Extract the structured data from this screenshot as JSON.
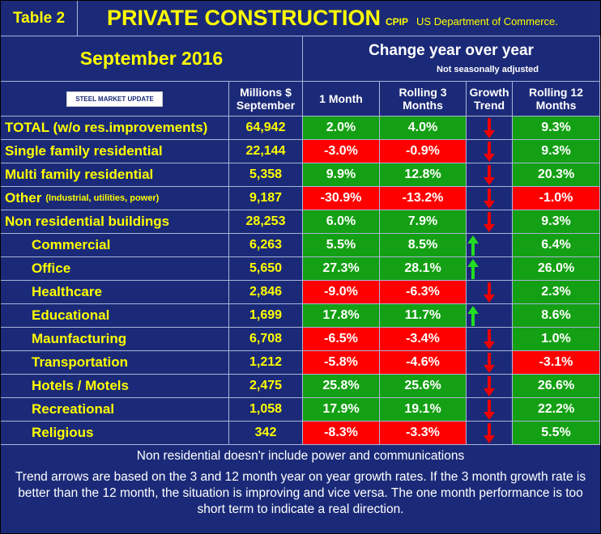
{
  "header": {
    "table_label": "Table 2",
    "title": "PRIVATE CONSTRUCTION",
    "code": "CPIP",
    "source": "US Department of Commerce.",
    "period": "September 2016",
    "change_title": "Change year over year",
    "change_note": "Not seasonally adjusted",
    "logo": "STEEL MARKET UPDATE"
  },
  "columns": [
    "Millions $ September",
    "1 Month",
    "Rolling 3 Months",
    "Growth Trend",
    "Rolling 12 Months"
  ],
  "rows": [
    {
      "label": "TOTAL (w/o res.improvements)",
      "value": "64,942",
      "m1": "2.0%",
      "m3": "4.0%",
      "trend": "down",
      "m12": "9.3%"
    },
    {
      "label": "Single family residential",
      "value": "22,144",
      "m1": "-3.0%",
      "m3": "-0.9%",
      "trend": "down",
      "m12": "9.3%"
    },
    {
      "label": "Multi family residential",
      "value": "5,358",
      "m1": "9.9%",
      "m3": "12.8%",
      "trend": "down",
      "m12": "20.3%"
    },
    {
      "label": "Other",
      "note": "(Industrial, utilities, power)",
      "value": "9,187",
      "m1": "-30.9%",
      "m3": "-13.2%",
      "trend": "down",
      "m12": "-1.0%"
    },
    {
      "label": "Non residential buildings",
      "value": "28,253",
      "m1": "6.0%",
      "m3": "7.9%",
      "trend": "down",
      "m12": "9.3%"
    },
    {
      "label": "Commercial",
      "indent": true,
      "value": "6,263",
      "m1": "5.5%",
      "m3": "8.5%",
      "trend": "up",
      "m12": "6.4%"
    },
    {
      "label": "Office",
      "indent": true,
      "value": "5,650",
      "m1": "27.3%",
      "m3": "28.1%",
      "trend": "up",
      "m12": "26.0%"
    },
    {
      "label": "Healthcare",
      "indent": true,
      "value": "2,846",
      "m1": "-9.0%",
      "m3": "-6.3%",
      "trend": "down",
      "m12": "2.3%"
    },
    {
      "label": "Educational",
      "indent": true,
      "value": "1,699",
      "m1": "17.8%",
      "m3": "11.7%",
      "trend": "up",
      "m12": "8.6%"
    },
    {
      "label": "Maunfacturing",
      "indent": true,
      "value": "6,708",
      "m1": "-6.5%",
      "m3": "-3.4%",
      "trend": "down",
      "m12": "1.0%"
    },
    {
      "label": "Transportation",
      "indent": true,
      "value": "1,212",
      "m1": "-5.8%",
      "m3": "-4.6%",
      "trend": "down",
      "m12": "-3.1%"
    },
    {
      "label": "Hotels / Motels",
      "indent": true,
      "value": "2,475",
      "m1": "25.8%",
      "m3": "25.6%",
      "trend": "down",
      "m12": "26.6%"
    },
    {
      "label": "Recreational",
      "indent": true,
      "value": "1,058",
      "m1": "17.9%",
      "m3": "19.1%",
      "trend": "down",
      "m12": "22.2%"
    },
    {
      "label": "Religious",
      "indent": true,
      "value": "342",
      "m1": "-8.3%",
      "m3": "-3.3%",
      "trend": "down",
      "m12": "5.5%"
    }
  ],
  "footer": {
    "note": "Non residential doesn'r include power and communications",
    "explanation": "Trend arrows are based on the 3 and 12 month year on year growth rates. If the 3 month growth rate is better than the 12 month, the situation is improving and vice versa. The one month performance is too short term to indicate a real direction."
  }
}
